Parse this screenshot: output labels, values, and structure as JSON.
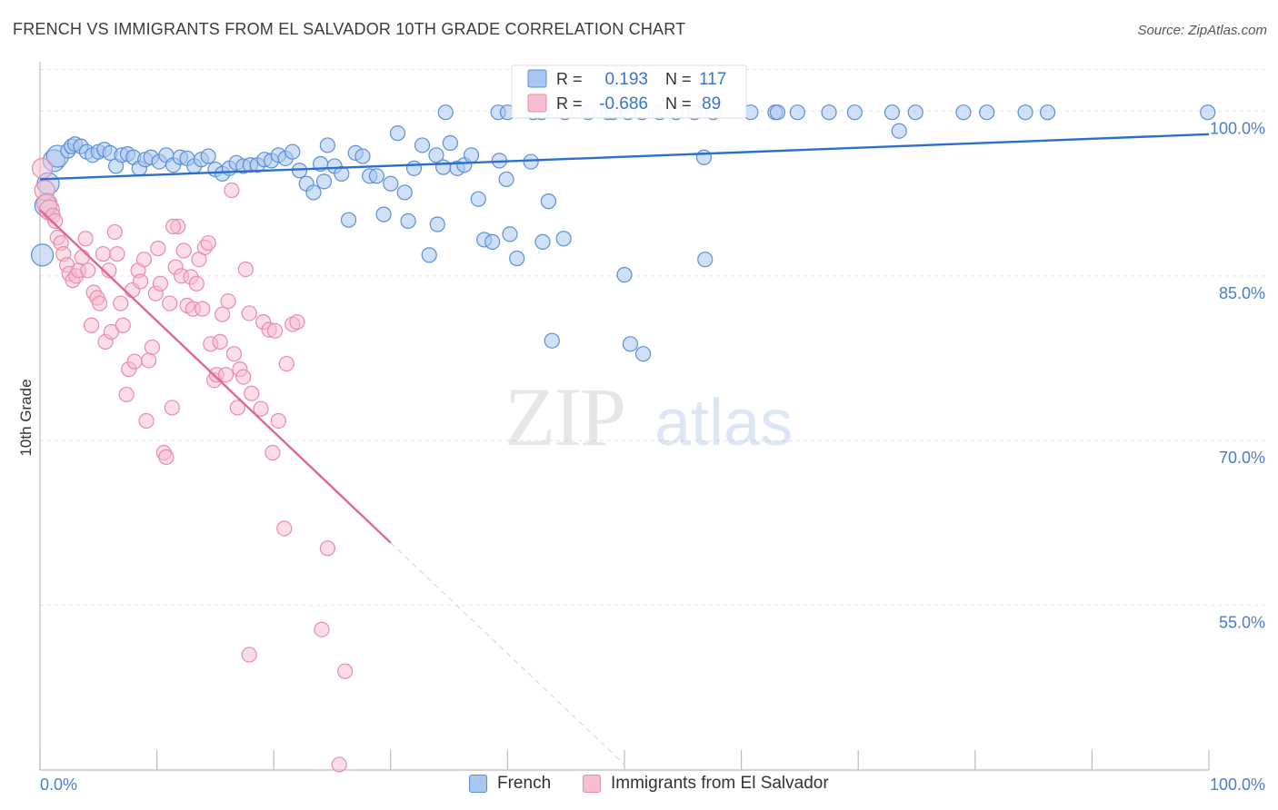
{
  "header": {
    "title": "FRENCH VS IMMIGRANTS FROM EL SALVADOR 10TH GRADE CORRELATION CHART",
    "source": "Source: ZipAtlas.com"
  },
  "watermark": {
    "part1": "ZIP",
    "part2": "atlas"
  },
  "colors": {
    "french_fill": "#a9c6ee",
    "french_stroke": "#5a8fd8",
    "french_line": "#2a6fd0",
    "salvador_fill": "#f6bcd0",
    "salvador_stroke": "#e88cab",
    "salvador_line": "#e0678f",
    "axis_text": "#4a7ccf",
    "grid": "#e3e3e3"
  },
  "legend_box": {
    "rows": [
      {
        "r_label": "R =",
        "r_value": "0.193",
        "n_label": "N =",
        "n_value": "117"
      },
      {
        "r_label": "R =",
        "r_value": "-0.686",
        "n_label": "N =",
        "n_value": "89"
      }
    ]
  },
  "bottom_legend": [
    "French",
    "Immigrants from El Salvador"
  ],
  "chart_data": {
    "type": "scatter",
    "title": "FRENCH VS IMMIGRANTS FROM EL SALVADOR 10TH GRADE CORRELATION CHART",
    "xlabel": "",
    "ylabel": "10th Grade",
    "xlim": [
      0,
      100
    ],
    "ylim": [
      40,
      105
    ],
    "x_tick_labels": [
      "0.0%",
      "100.0%"
    ],
    "y_ticks": [
      55,
      70,
      85,
      100
    ],
    "y_tick_labels": [
      "55.0%",
      "70.0%",
      "85.0%",
      "100.0%"
    ],
    "grid": true,
    "legend_position": "top-center",
    "series": [
      {
        "name": "French",
        "r": 0.193,
        "n": 117,
        "trend": [
          [
            0,
            93.8
          ],
          [
            100,
            97.9
          ]
        ],
        "points": [
          [
            0.2,
            86.9
          ],
          [
            0.5,
            91.4
          ],
          [
            0.7,
            93.4
          ],
          [
            1.2,
            95.5
          ],
          [
            1.5,
            95.9
          ],
          [
            2.4,
            96.4
          ],
          [
            2.7,
            96.8
          ],
          [
            3.0,
            97.0
          ],
          [
            3.5,
            96.8
          ],
          [
            4.0,
            96.3
          ],
          [
            4.5,
            96.0
          ],
          [
            5.0,
            96.3
          ],
          [
            5.5,
            96.5
          ],
          [
            6.0,
            96.2
          ],
          [
            6.5,
            95.0
          ],
          [
            7.0,
            96.0
          ],
          [
            7.5,
            96.1
          ],
          [
            8.0,
            95.8
          ],
          [
            8.5,
            94.8
          ],
          [
            9.0,
            95.6
          ],
          [
            9.5,
            95.8
          ],
          [
            10.2,
            95.4
          ],
          [
            10.8,
            96.0
          ],
          [
            11.4,
            95.1
          ],
          [
            12.0,
            95.8
          ],
          [
            12.6,
            95.7
          ],
          [
            13.2,
            95.0
          ],
          [
            13.8,
            95.6
          ],
          [
            14.4,
            95.9
          ],
          [
            15.0,
            94.7
          ],
          [
            15.6,
            94.3
          ],
          [
            16.2,
            94.8
          ],
          [
            16.8,
            95.3
          ],
          [
            17.4,
            95.0
          ],
          [
            18.0,
            95.1
          ],
          [
            18.6,
            95.1
          ],
          [
            19.2,
            95.6
          ],
          [
            19.8,
            95.5
          ],
          [
            20.4,
            96.0
          ],
          [
            21.0,
            95.7
          ],
          [
            21.6,
            96.3
          ],
          [
            22.2,
            94.6
          ],
          [
            22.8,
            93.4
          ],
          [
            23.4,
            92.6
          ],
          [
            24.0,
            95.2
          ],
          [
            24.6,
            96.9
          ],
          [
            24.3,
            93.6
          ],
          [
            25.2,
            95.0
          ],
          [
            25.8,
            94.3
          ],
          [
            26.4,
            90.1
          ],
          [
            27.0,
            96.2
          ],
          [
            27.6,
            95.9
          ],
          [
            28.2,
            94.1
          ],
          [
            28.8,
            94.1
          ],
          [
            29.4,
            90.6
          ],
          [
            30.0,
            93.4
          ],
          [
            30.6,
            98.0
          ],
          [
            31.2,
            92.6
          ],
          [
            31.5,
            90.0
          ],
          [
            32.0,
            94.8
          ],
          [
            32.7,
            96.9
          ],
          [
            33.3,
            86.9
          ],
          [
            33.9,
            96.0
          ],
          [
            34.0,
            89.7
          ],
          [
            34.5,
            94.9
          ],
          [
            35.1,
            97.1
          ],
          [
            35.7,
            94.8
          ],
          [
            36.3,
            95.1
          ],
          [
            36.9,
            96.0
          ],
          [
            37.5,
            92.0
          ],
          [
            38.0,
            88.3
          ],
          [
            38.7,
            88.1
          ],
          [
            39.3,
            95.5
          ],
          [
            39.9,
            93.8
          ],
          [
            40.2,
            88.8
          ],
          [
            40.8,
            86.6
          ],
          [
            42.0,
            95.4
          ],
          [
            43.0,
            88.1
          ],
          [
            43.5,
            91.8
          ],
          [
            44.8,
            88.4
          ],
          [
            34.7,
            99.9
          ],
          [
            39.2,
            99.9
          ],
          [
            40.0,
            99.9
          ],
          [
            42.2,
            99.9
          ],
          [
            42.9,
            99.9
          ],
          [
            44.9,
            99.9
          ],
          [
            46.9,
            99.9
          ],
          [
            48.6,
            99.9
          ],
          [
            49.0,
            99.9
          ],
          [
            50.3,
            99.9
          ],
          [
            51.5,
            99.9
          ],
          [
            53.0,
            99.9
          ],
          [
            54.4,
            99.9
          ],
          [
            56.0,
            99.9
          ],
          [
            57.6,
            99.9
          ],
          [
            60.8,
            99.9
          ],
          [
            62.9,
            99.9
          ],
          [
            63.1,
            99.9
          ],
          [
            64.8,
            99.9
          ],
          [
            67.5,
            99.9
          ],
          [
            69.7,
            99.9
          ],
          [
            72.9,
            99.9
          ],
          [
            74.9,
            99.9
          ],
          [
            79.0,
            99.9
          ],
          [
            81.0,
            99.9
          ],
          [
            84.3,
            99.9
          ],
          [
            86.2,
            99.9
          ],
          [
            99.9,
            99.9
          ],
          [
            73.5,
            98.2
          ],
          [
            56.8,
            95.8
          ],
          [
            50.0,
            85.1
          ],
          [
            56.9,
            86.5
          ],
          [
            43.8,
            79.1
          ],
          [
            50.5,
            78.8
          ],
          [
            51.6,
            77.9
          ]
        ]
      },
      {
        "name": "Immigrants from El Salvador",
        "r": -0.686,
        "n": 89,
        "trend": [
          [
            0,
            91.0
          ],
          [
            30,
            60.7
          ]
        ],
        "trend_dashed": [
          [
            30,
            60.7
          ],
          [
            50,
            40.5
          ]
        ],
        "points": [
          [
            0.2,
            94.8
          ],
          [
            0.4,
            92.8
          ],
          [
            0.6,
            91.6
          ],
          [
            0.8,
            91.0
          ],
          [
            1.1,
            90.5
          ],
          [
            1.3,
            90.0
          ],
          [
            1.5,
            88.5
          ],
          [
            1.8,
            88.0
          ],
          [
            2.0,
            87.0
          ],
          [
            2.3,
            86.0
          ],
          [
            2.5,
            85.2
          ],
          [
            2.8,
            84.6
          ],
          [
            3.1,
            85.0
          ],
          [
            3.3,
            85.5
          ],
          [
            3.6,
            86.7
          ],
          [
            3.9,
            88.4
          ],
          [
            4.1,
            85.5
          ],
          [
            4.4,
            80.5
          ],
          [
            4.6,
            83.5
          ],
          [
            4.9,
            83.0
          ],
          [
            5.1,
            82.5
          ],
          [
            5.4,
            87.0
          ],
          [
            5.6,
            79.0
          ],
          [
            5.9,
            85.5
          ],
          [
            6.1,
            79.9
          ],
          [
            6.4,
            89.0
          ],
          [
            6.6,
            87.0
          ],
          [
            6.9,
            82.5
          ],
          [
            7.1,
            80.5
          ],
          [
            7.4,
            74.2
          ],
          [
            7.6,
            76.5
          ],
          [
            7.9,
            83.7
          ],
          [
            8.1,
            77.2
          ],
          [
            8.4,
            85.5
          ],
          [
            8.6,
            84.5
          ],
          [
            8.9,
            86.5
          ],
          [
            9.1,
            71.8
          ],
          [
            9.3,
            77.3
          ],
          [
            9.6,
            78.5
          ],
          [
            9.9,
            83.4
          ],
          [
            10.1,
            87.5
          ],
          [
            10.3,
            84.3
          ],
          [
            10.6,
            68.9
          ],
          [
            10.8,
            68.5
          ],
          [
            11.1,
            82.5
          ],
          [
            11.3,
            73.0
          ],
          [
            11.6,
            85.8
          ],
          [
            11.8,
            89.5
          ],
          [
            12.1,
            85.0
          ],
          [
            12.3,
            87.3
          ],
          [
            12.6,
            82.3
          ],
          [
            12.9,
            84.9
          ],
          [
            13.1,
            82.0
          ],
          [
            13.4,
            84.3
          ],
          [
            13.6,
            86.5
          ],
          [
            13.9,
            82.0
          ],
          [
            14.1,
            87.6
          ],
          [
            14.4,
            88.0
          ],
          [
            14.6,
            78.8
          ],
          [
            14.9,
            75.5
          ],
          [
            15.1,
            76.0
          ],
          [
            15.4,
            79.0
          ],
          [
            15.6,
            81.5
          ],
          [
            15.9,
            76.0
          ],
          [
            16.1,
            82.7
          ],
          [
            16.4,
            92.8
          ],
          [
            16.6,
            77.9
          ],
          [
            16.9,
            73.0
          ],
          [
            17.1,
            76.5
          ],
          [
            17.4,
            75.8
          ],
          [
            17.6,
            85.6
          ],
          [
            17.9,
            81.6
          ],
          [
            18.1,
            74.3
          ],
          [
            18.9,
            72.9
          ],
          [
            19.1,
            80.8
          ],
          [
            19.6,
            80.1
          ],
          [
            19.9,
            68.9
          ],
          [
            20.1,
            80.0
          ],
          [
            20.4,
            71.8
          ],
          [
            20.9,
            62.0
          ],
          [
            21.1,
            77.0
          ],
          [
            21.6,
            80.6
          ],
          [
            22.0,
            80.8
          ],
          [
            24.1,
            52.8
          ],
          [
            24.6,
            60.2
          ],
          [
            26.1,
            49.0
          ],
          [
            25.6,
            40.5
          ],
          [
            17.9,
            50.5
          ],
          [
            11.4,
            89.5
          ]
        ]
      }
    ]
  }
}
